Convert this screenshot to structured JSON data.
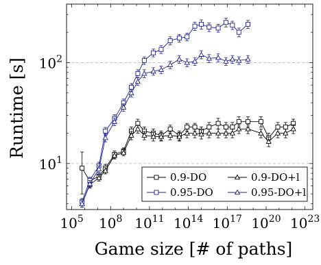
{
  "chart_data": {
    "type": "line",
    "xlabel": "Game size [# of paths]",
    "ylabel": "Runtime [s]",
    "xscale": "log",
    "yscale": "log",
    "xlim_exponent": [
      4.6,
      23.6
    ],
    "ylim": [
      3.5,
      380
    ],
    "x_ticks": [
      {
        "base": "10",
        "exp": "5",
        "value": 100000
      },
      {
        "base": "10",
        "exp": "8",
        "value": 100000000
      },
      {
        "base": "10",
        "exp": "11",
        "value": 100000000000
      },
      {
        "base": "10",
        "exp": "14",
        "value": 100000000000000
      },
      {
        "base": "10",
        "exp": "17",
        "value": 100000000000000000
      },
      {
        "base": "10",
        "exp": "20",
        "value": 1e+20
      },
      {
        "base": "10",
        "exp": "23",
        "value": 1e+23
      }
    ],
    "y_ticks": [
      {
        "base": "10",
        "exp": "1",
        "value": 10
      },
      {
        "base": "10",
        "exp": "2",
        "value": 100
      }
    ],
    "grid": "horizontal-major-dashed",
    "legend_position": "bottom-right",
    "legend_columns": 2,
    "series": [
      {
        "name": "0.9-DO",
        "color": "#000000",
        "marker": "square",
        "x_exponent": [
          5.8,
          6.4,
          7.1,
          7.6,
          8.3,
          9.0,
          9.6,
          10.1,
          10.6,
          11.3,
          11.9,
          12.6,
          13.3,
          13.9,
          14.5,
          15.0,
          15.6,
          16.3,
          16.9,
          17.4,
          17.9,
          18.6,
          19.6,
          20.2,
          20.9,
          21.5,
          22.1
        ],
        "y": [
          9.0,
          6.7,
          7.5,
          9.0,
          12.3,
          13.3,
          21.0,
          25.0,
          21.0,
          20.0,
          19.0,
          22.0,
          19.0,
          23.0,
          23.0,
          21.0,
          23.0,
          25.0,
          23.0,
          23.0,
          26.0,
          26.0,
          26.0,
          18.0,
          23.0,
          23.0,
          25.0
        ],
        "err": [
          4.0,
          0.6,
          0.6,
          0.8,
          1.0,
          1.0,
          2.0,
          2.5,
          2.0,
          2.0,
          2.0,
          2.0,
          2.0,
          2.0,
          2.0,
          2.0,
          2.5,
          3.0,
          2.5,
          2.5,
          3.0,
          3.0,
          3.0,
          2.0,
          2.5,
          2.5,
          2.5
        ]
      },
      {
        "name": "0.9-DO+l",
        "color": "#000000",
        "marker": "triangle",
        "x_exponent": [
          5.8,
          6.4,
          7.1,
          7.6,
          8.3,
          9.0,
          9.6,
          10.1,
          10.6,
          11.3,
          11.9,
          12.6,
          13.3,
          13.9,
          14.5,
          15.0,
          15.6,
          16.3,
          16.9,
          17.4,
          17.9,
          18.6,
          19.6,
          20.2,
          20.9,
          21.5,
          22.1
        ],
        "y": [
          4.0,
          6.2,
          7.2,
          8.5,
          12.0,
          12.8,
          19.0,
          22.0,
          19.0,
          18.5,
          18.5,
          19.0,
          18.5,
          20.0,
          20.0,
          19.5,
          20.0,
          20.0,
          20.0,
          20.0,
          22.0,
          22.0,
          20.0,
          16.5,
          20.0,
          20.0,
          22.0
        ],
        "err": [
          0.3,
          0.5,
          0.5,
          0.6,
          0.9,
          0.9,
          1.8,
          2.0,
          1.8,
          1.8,
          1.8,
          1.8,
          1.8,
          2.0,
          2.0,
          2.0,
          2.0,
          2.0,
          2.0,
          2.0,
          2.2,
          2.2,
          2.0,
          1.8,
          2.0,
          2.0,
          2.2
        ]
      },
      {
        "name": "0.95-DO",
        "color": "#1f1f8f",
        "marker": "square",
        "x_exponent": [
          5.8,
          6.4,
          7.1,
          7.6,
          8.3,
          9.0,
          9.6,
          10.1,
          10.6,
          11.3,
          11.9,
          12.6,
          13.3,
          13.9,
          14.5,
          15.0,
          15.6,
          16.3,
          16.9,
          17.4,
          17.9,
          18.6
        ],
        "y": [
          4.2,
          6.8,
          9.5,
          21.0,
          28.0,
          40.0,
          57.0,
          78.0,
          105.0,
          125.0,
          135.0,
          165.0,
          175.0,
          180.0,
          230.0,
          240.0,
          225.0,
          220.0,
          250.0,
          235.0,
          200.0,
          240.0
        ],
        "err": [
          0.3,
          0.5,
          0.8,
          1.8,
          2.5,
          3.5,
          5.0,
          7.0,
          9.0,
          11.0,
          12.0,
          15.0,
          15.0,
          16.0,
          22.0,
          25.0,
          22.0,
          20.0,
          25.0,
          22.0,
          20.0,
          22.0
        ]
      },
      {
        "name": "0.95-DO+l",
        "color": "#1f1f8f",
        "marker": "triangle",
        "x_exponent": [
          5.8,
          6.4,
          7.1,
          7.6,
          8.3,
          9.0,
          9.6,
          10.1,
          10.6,
          11.3,
          11.9,
          12.6,
          13.3,
          13.9,
          14.5,
          15.0,
          15.6,
          16.3,
          16.9,
          17.4,
          17.9,
          18.6
        ],
        "y": [
          4.0,
          6.3,
          8.8,
          18.0,
          26.0,
          36.0,
          50.0,
          65.0,
          78.0,
          82.0,
          85.0,
          95.0,
          108.0,
          100.0,
          103.0,
          120.0,
          110.0,
          112.0,
          103.0,
          108.0,
          105.0,
          108.0
        ],
        "err": [
          0.3,
          0.5,
          0.7,
          1.6,
          2.3,
          3.0,
          4.5,
          5.5,
          7.0,
          7.0,
          7.5,
          8.5,
          9.5,
          9.0,
          9.0,
          11.0,
          10.0,
          10.0,
          9.0,
          9.5,
          9.0,
          9.5
        ]
      }
    ]
  }
}
